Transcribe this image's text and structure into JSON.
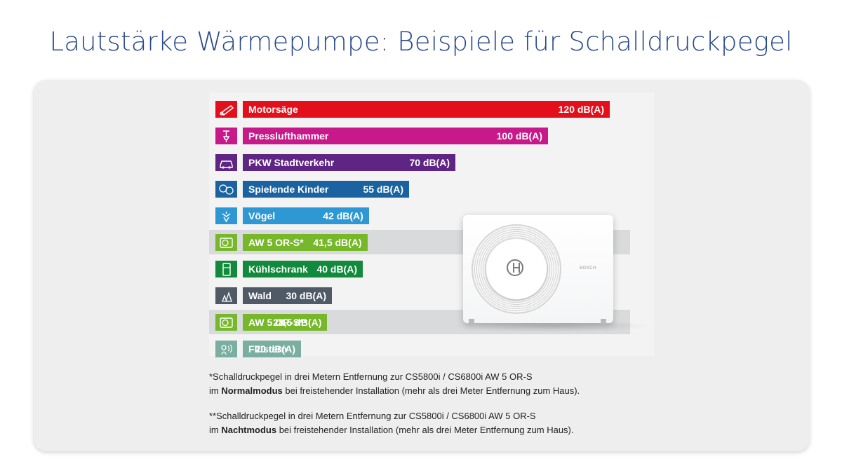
{
  "title": "Lautstärke Wärmepumpe: Beispiele für Schalldruckpegel",
  "unit_brand": "BOSCH",
  "chart_data": {
    "type": "bar",
    "orientation": "horizontal",
    "unit": "dB(A)",
    "categories": [
      "Motorsäge",
      "Presslufthammer",
      "PKW Stadtverkehr",
      "Spielende Kinder",
      "Vögel",
      "AW 5 OR-S*",
      "Kühlschrank",
      "Wald",
      "AW 5 OR-S**",
      "Flüstern"
    ],
    "values": [
      120,
      100,
      70,
      55,
      42,
      41.5,
      40,
      30,
      28.5,
      20
    ],
    "value_labels": [
      "120 dB(A)",
      "100 dB(A)",
      "70 dB(A)",
      "55 dB(A)",
      "42 dB(A)",
      "41,5 dB(A)",
      "40 dB(A)",
      "30 dB(A)",
      "28,5 dB(A)",
      "20 dB(A)"
    ],
    "colors": [
      "#e3101b",
      "#c8198a",
      "#5e2584",
      "#1a63a0",
      "#2d98d4",
      "#76b82a",
      "#118a3c",
      "#4f5a66",
      "#76b82a",
      "#7aaea0"
    ],
    "icons": [
      "chainsaw-icon",
      "jackhammer-icon",
      "car-icon",
      "children-icon",
      "bird-icon",
      "heat-pump-icon",
      "fridge-icon",
      "forest-icon",
      "heat-pump-icon",
      "whisper-icon"
    ],
    "highlighted": [
      5,
      8
    ]
  },
  "notes": [
    {
      "line1": "*Schalldruckpegel in drei Metern Entfernung zur CS5800i / CS6800i AW 5 OR-S",
      "line2_pre": "im ",
      "line2_bold": "Normalmodus",
      "line2_post": " bei freistehender Installation (mehr als drei Meter Entfernung zum Haus)."
    },
    {
      "line1": "**Schalldruckpegel in drei Metern Entfernung zur CS5800i / CS6800i AW 5 OR-S",
      "line2_pre": "im ",
      "line2_bold": "Nachtmodus",
      "line2_post": " bei freistehender Installation (mehr als drei Meter Entfernung zum Haus)."
    }
  ]
}
